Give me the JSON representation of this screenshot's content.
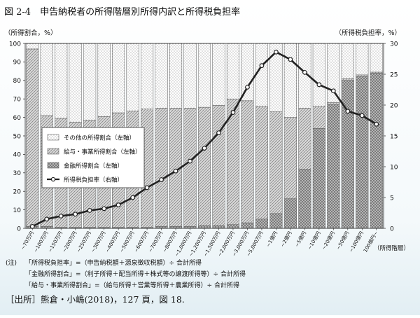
{
  "figure": {
    "title": "図 2-4　申告納税者の所得階層別所得内訳と所得税負担率",
    "left_unit": "（所得割合，%）",
    "right_unit": "（所得税負担率，%）",
    "x_unit": "（所得階層）",
    "source": "［出所］熊倉・小嶋(2018)，127 頁，図 18."
  },
  "notes": {
    "prefix": "(注)",
    "lines": [
      "「所得税負担率」=（申告納税額＋源泉徴収税額）÷ 合計所得",
      "「金融所得割合」=（利子所得＋配当所得＋株式等の譲渡所得等）÷ 合計所得",
      "「給与・事業所得割合」=（給与所得＋営業等所得＋農業所得）÷ 合計所得"
    ]
  },
  "colors": {
    "financial": "#9a9a9a",
    "salary": "#c9c9c9",
    "other": "#ffffff",
    "line": "#222222",
    "marker_fill": "#ffffff"
  },
  "chart_data": {
    "type": "bar",
    "stacked": true,
    "categories": [
      "~70万円",
      "~100万円",
      "~150万円",
      "~200万円",
      "~250万円",
      "~300万円",
      "~400万円",
      "~500万円",
      "~600万円",
      "~700万円",
      "~800万円",
      "~1,000万円",
      "~1,200万円",
      "~1,500万円",
      "~2,000万円",
      "~3,000万円",
      "~5,000万円",
      "~1億円",
      "~2億円",
      "~5億円",
      "~10億円",
      "~20億円",
      "~50億円",
      "~100億円",
      "100億円~"
    ],
    "series": [
      {
        "name": "金融所得割合（左軸）",
        "axis": "left",
        "values": [
          1,
          1,
          0.5,
          0.5,
          0.5,
          0.5,
          0.5,
          0.5,
          0.5,
          1,
          1,
          1,
          1.5,
          1.5,
          2,
          3,
          5,
          8,
          16,
          32,
          54,
          67,
          80,
          82,
          84
        ]
      },
      {
        "name": "給与・事業所得割合（左軸）",
        "axis": "left",
        "values": [
          96,
          60,
          59,
          57,
          58,
          60,
          62,
          63,
          64,
          64,
          64,
          64,
          64,
          65,
          68,
          66,
          61,
          55,
          44,
          33,
          12,
          1,
          1,
          1,
          0.5
        ]
      },
      {
        "name": "その他の所得割合（左軸）",
        "axis": "left",
        "values": [
          3,
          39,
          40.5,
          42.5,
          41.5,
          39.5,
          37.5,
          36.5,
          35.5,
          35,
          35,
          35,
          34.5,
          33.5,
          30,
          31,
          34,
          37,
          40,
          35,
          34,
          32,
          19,
          17,
          15.5
        ]
      },
      {
        "name": "所得税負担率（右軸）",
        "axis": "right",
        "type": "line",
        "values": [
          0.3,
          1.5,
          2,
          2.3,
          2.9,
          3.2,
          3.8,
          5,
          6.6,
          7.9,
          9.3,
          10.9,
          13,
          15.5,
          18.8,
          22.9,
          26.4,
          28.6,
          27.4,
          25.3,
          23.3,
          22.3,
          19,
          18.3,
          16.9
        ]
      }
    ],
    "ylim_left": [
      0,
      100
    ],
    "ylim_right": [
      0,
      30
    ],
    "yticks_left": [
      "0",
      "10",
      "20",
      "30",
      "40",
      "50",
      "60",
      "70",
      "80",
      "90",
      "100"
    ],
    "yticks_right": [
      "0",
      "5",
      "10",
      "15",
      "20",
      "25",
      "30"
    ],
    "grid": false,
    "legend_position": "left-middle"
  },
  "legend": [
    {
      "key": "other",
      "label": "その他の所得割合（左軸）"
    },
    {
      "key": "salary",
      "label": "給与・事業所得割合（左軸）"
    },
    {
      "key": "financial",
      "label": "金融所得割合（左軸）"
    },
    {
      "key": "line",
      "label": "所得税負担率（右軸）"
    }
  ]
}
